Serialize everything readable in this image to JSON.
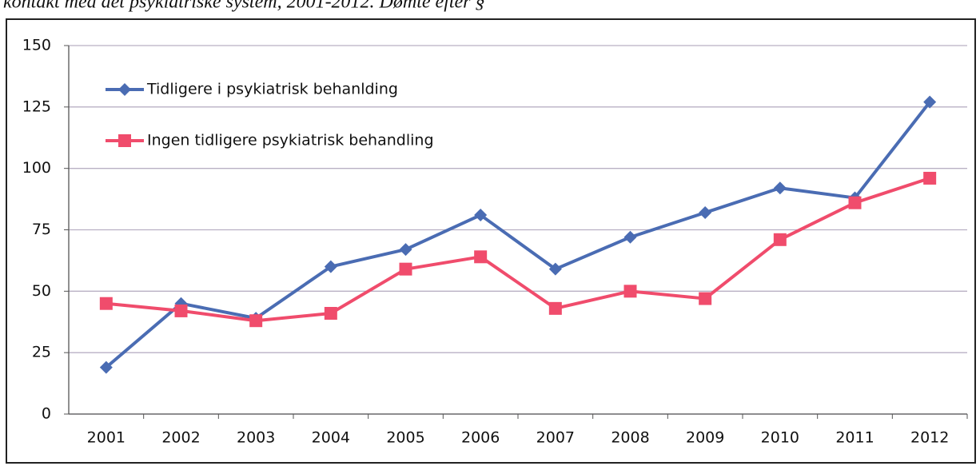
{
  "chart_data": {
    "type": "line",
    "caption": "kontakt med det psykiatriske system, 2001-2012. Dømte efter §",
    "categories": [
      "2001",
      "2002",
      "2003",
      "2004",
      "2005",
      "2006",
      "2007",
      "2008",
      "2009",
      "2010",
      "2011",
      "2012"
    ],
    "series": [
      {
        "name": "Tidligere i psykiatrisk behanlding",
        "color": "#4a6cb3",
        "marker": "diamond",
        "values": [
          19,
          45,
          39,
          60,
          67,
          81,
          59,
          72,
          82,
          92,
          88,
          127
        ]
      },
      {
        "name": "Ingen tidligere psykiatrisk behandling",
        "color": "#f04c6c",
        "marker": "square",
        "values": [
          45,
          42,
          38,
          41,
          59,
          64,
          43,
          50,
          47,
          71,
          86,
          96
        ]
      }
    ],
    "ylim": [
      0,
      150
    ],
    "yticks": [
      0,
      25,
      50,
      75,
      100,
      125,
      150
    ],
    "grid": true,
    "legend": "top-left"
  }
}
